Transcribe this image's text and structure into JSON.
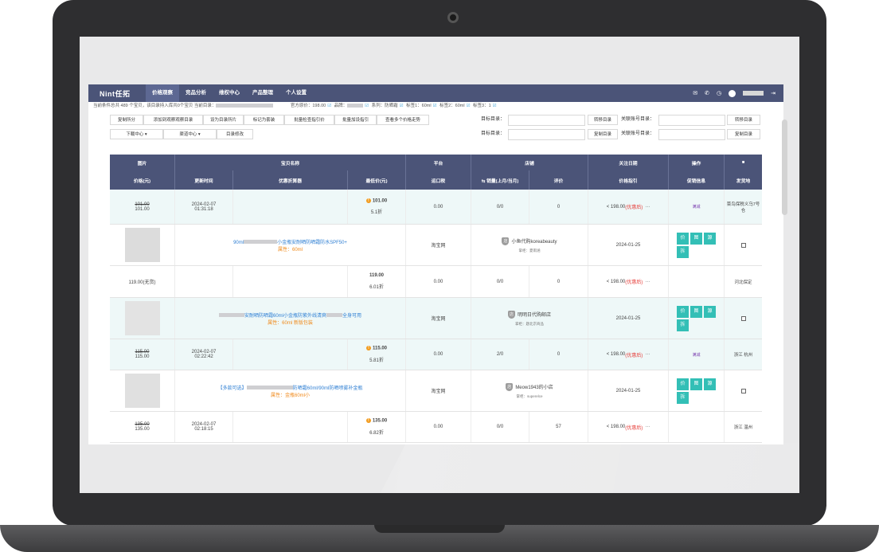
{
  "app": {
    "logo": "Nint任拓"
  },
  "nav": [
    "价格观察",
    "竞品分析",
    "维权中心",
    "产品整理",
    "个人设置"
  ],
  "info": {
    "text1": "当前条件总共 489 个宝贝，该目录持入库共0个宝贝 当前目录：",
    "official_price": "官方原价：198.00",
    "brand": "品牌：",
    "series": "系列：防晒霜",
    "tag1": "标签1：60ml",
    "tag2": "标签2：60ml",
    "tag3": "标签3：1"
  },
  "toolbar": {
    "row1": [
      "复制所分",
      "添加到观察观察目录",
      "设为目录所片",
      "标记为套装",
      "批量检查指引价",
      "批量加设指引",
      "查看多个价格走势"
    ],
    "row2": [
      "下载中心 ▾",
      "渠道中心 ▾",
      "目录修改"
    ],
    "target_dir_label": "目标目录：",
    "related_dir_label": "关联账号目录：",
    "move_btn": "转移目录",
    "copy_btn": "复制目录"
  },
  "header": {
    "row1": [
      "图片",
      "宝贝名称",
      "平台",
      "店铺",
      "关注日期",
      "操作",
      "■"
    ],
    "row2": [
      "价格(元)",
      "更新时间",
      "优惠折算器",
      "最低价(元)",
      "运口税",
      "⇆ 销量(上月/当月)",
      "评价",
      "价格指引",
      "促销信息",
      "发货地"
    ]
  },
  "rows": [
    {
      "kind": "price",
      "teal": true,
      "old": "101.00",
      "new": "101.00",
      "date": "2024-02-07",
      "time": "01:31:18",
      "promo_calc": "",
      "low": "101.00",
      "disc": "5.1折",
      "tax": "0.00",
      "sales": "0/0",
      "rating": "0",
      "guide": "< 198.00",
      "guide_tag": "(优惠后)",
      "more": "···",
      "promo": "满减",
      "ship": "菜鸟保税义乌7号仓"
    },
    {
      "kind": "product",
      "teal": false,
      "name_pre": "90ml",
      "name_post": "小金瓶安耐晒防晒霜防水SPF50+",
      "attr": "属性：60ml",
      "platform": "淘宝网",
      "shop": "小鱼代购koreabeauty",
      "shop_sub": "掌柜：夏雨涵",
      "date": "2024-01-25",
      "ops": [
        "价",
        "图",
        "源",
        "拆"
      ]
    },
    {
      "kind": "price",
      "teal": false,
      "old": "",
      "new": "119.00(无货)",
      "date": "",
      "time": "",
      "promo_calc": "",
      "low": "119.00",
      "disc": "6.01折",
      "tax": "0.00",
      "sales": "0/0",
      "rating": "0",
      "guide": "< 198.00",
      "guide_tag": "(优惠后)",
      "more": "···",
      "promo": "",
      "ship": "河北保定"
    },
    {
      "kind": "product",
      "teal": true,
      "name_pre": "",
      "name_post": "安耐晒防晒霜60ml小金瓶防紫外线清爽",
      "name_tail": "全身可用",
      "attr": "属性：60ml 新版包装",
      "platform": "淘宝网",
      "shop": "明明日代购邮店",
      "shop_sub": "掌柜：题北京商品",
      "date": "2024-01-25",
      "ops": [
        "价",
        "图",
        "源",
        "拆"
      ]
    },
    {
      "kind": "price",
      "teal": true,
      "old": "115.00",
      "new": "115.00",
      "date": "2024-02-07",
      "time": "02:22:42",
      "promo_calc": "",
      "low": "115.00",
      "disc": "5.81折",
      "tax": "0.00",
      "sales": "2/0",
      "rating": "0",
      "guide": "< 198.00",
      "guide_tag": "(优惠后)",
      "more": "···",
      "promo": "满减",
      "ship": "浙江 杭州"
    },
    {
      "kind": "product",
      "teal": false,
      "name_pre": "【多款可选】",
      "name_post": "防晒霜60ml/90ml防晒喷雾补金瓶",
      "attr": "属性：金瓶60ml小",
      "platform": "淘宝网",
      "shop": "Meow1943的小店",
      "shop_sub": "掌柜：superelce",
      "date": "2024-01-25",
      "ops": [
        "价",
        "图",
        "源",
        "拆"
      ]
    },
    {
      "kind": "price",
      "teal": false,
      "old": "135.00",
      "new": "135.00",
      "date": "2024-02-07",
      "time": "02:18:15",
      "promo_calc": "",
      "low": "135.00",
      "disc": "6.82折",
      "tax": "0.00",
      "sales": "0/0",
      "rating": "57",
      "guide": "< 198.00",
      "guide_tag": "(优惠后)",
      "more": "···",
      "promo": "",
      "ship": "浙江 温州"
    }
  ],
  "colors": {
    "nav_bg": "#4b5478",
    "teal_btn": "#33bfb6",
    "warn": "#f29b1d",
    "red": "#e53935"
  }
}
